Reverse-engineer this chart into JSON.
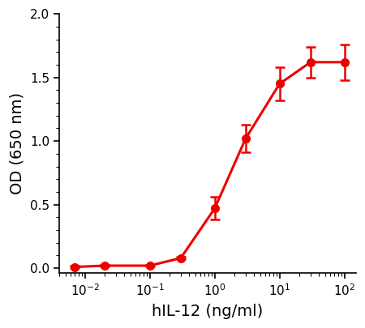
{
  "x": [
    0.007,
    0.02,
    0.1,
    0.3,
    1.0,
    3.0,
    10.0,
    30.0,
    100.0
  ],
  "y": [
    0.01,
    0.02,
    0.02,
    0.08,
    0.47,
    1.02,
    1.45,
    1.62,
    1.62
  ],
  "yerr": [
    0.01,
    0.005,
    0.005,
    0.01,
    0.09,
    0.11,
    0.13,
    0.12,
    0.14
  ],
  "color": "#ee0000",
  "marker": "o",
  "markersize": 7,
  "linewidth": 2.2,
  "xlabel": "hIL-12 (ng/ml)",
  "ylabel": "OD (650 nm)",
  "xlim": [
    0.004,
    150.0
  ],
  "ylim": [
    -0.04,
    2.0
  ],
  "yticks": [
    0.0,
    0.5,
    1.0,
    1.5,
    2.0
  ],
  "ytick_labels": [
    "0.0",
    "0.5",
    "1.0",
    "1.5",
    "2.0"
  ],
  "xtick_positions": [
    0.01,
    0.1,
    1.0,
    10.0,
    100.0
  ],
  "xtick_labels": [
    "10$^{-2}$",
    "10$^{-1}$",
    "10$^{0}$",
    "10$^{1}$",
    "10$^{2}$"
  ],
  "label_fontsize": 14,
  "tick_fontsize": 11,
  "capsize": 4,
  "elinewidth": 1.8,
  "spine_linewidth": 1.2
}
